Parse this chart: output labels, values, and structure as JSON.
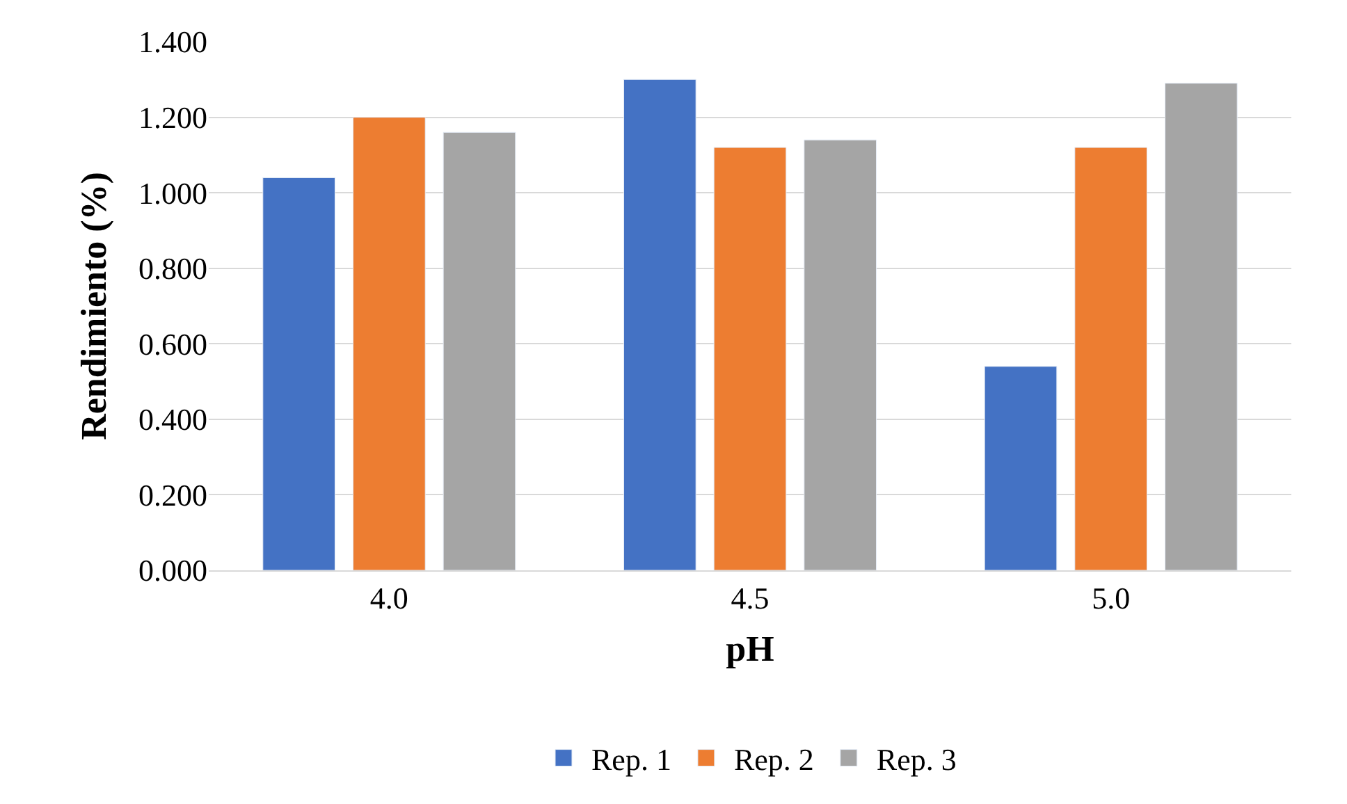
{
  "chart_data": {
    "type": "bar",
    "xlabel": "pH",
    "ylabel": "Rendimiento (%)",
    "categories": [
      "4.0",
      "4.5",
      "5.0"
    ],
    "series": [
      {
        "name": "Rep. 1",
        "color": "#4472c4",
        "values": [
          1.04,
          1.3,
          0.54
        ]
      },
      {
        "name": "Rep. 2",
        "color": "#ed7d31",
        "values": [
          1.2,
          1.12,
          1.12
        ]
      },
      {
        "name": "Rep. 3",
        "color": "#a5a5a5",
        "values": [
          1.16,
          1.14,
          1.29
        ]
      }
    ],
    "ylim": [
      0,
      1.4
    ],
    "yticks": [
      {
        "value": 0,
        "label": "0.000"
      },
      {
        "value": 0.2,
        "label": "0.200"
      },
      {
        "value": 0.4,
        "label": "0.400"
      },
      {
        "value": 0.6,
        "label": "0.600"
      },
      {
        "value": 0.8,
        "label": "0.800"
      },
      {
        "value": 1.0,
        "label": "1.000"
      },
      {
        "value": 1.2,
        "label": "1.200"
      },
      {
        "value": 1.4,
        "label": "1.400"
      }
    ],
    "grid": "y",
    "legend": "bottom"
  }
}
